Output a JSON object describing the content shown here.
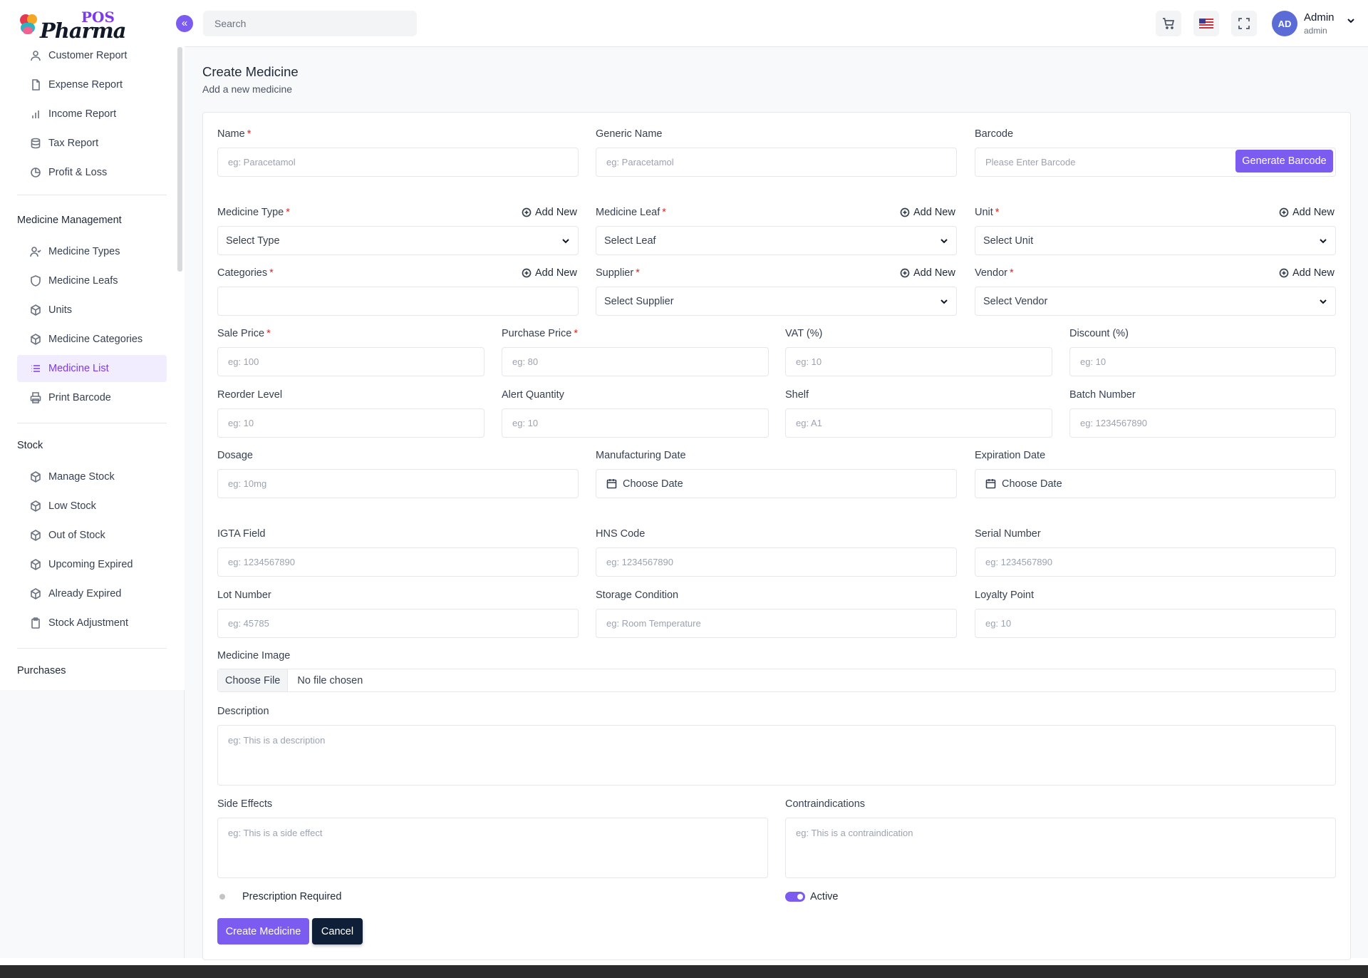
{
  "brand": {
    "pos": "POS",
    "pharma": "Pharma"
  },
  "header": {
    "search_placeholder": "Search",
    "user_name": "Admin",
    "user_role": "admin",
    "avatar_initials": "AD"
  },
  "sidebar": {
    "reports": [
      {
        "label": "Customer Report",
        "icon": "user-icon"
      },
      {
        "label": "Expense Report",
        "icon": "file-icon"
      },
      {
        "label": "Income Report",
        "icon": "bar-chart-icon"
      },
      {
        "label": "Tax Report",
        "icon": "database-icon"
      },
      {
        "label": "Profit & Loss",
        "icon": "pie-chart-icon"
      }
    ],
    "medicine_section": "Medicine Management",
    "medicine": [
      {
        "label": "Medicine Types",
        "icon": "user-check-icon"
      },
      {
        "label": "Medicine Leafs",
        "icon": "shield-icon"
      },
      {
        "label": "Units",
        "icon": "box-icon"
      },
      {
        "label": "Medicine Categories",
        "icon": "box-icon"
      },
      {
        "label": "Medicine List",
        "icon": "list-icon"
      },
      {
        "label": "Print Barcode",
        "icon": "printer-icon"
      }
    ],
    "stock_section": "Stock",
    "stock": [
      {
        "label": "Manage Stock",
        "icon": "box-icon"
      },
      {
        "label": "Low Stock",
        "icon": "box-icon"
      },
      {
        "label": "Out of Stock",
        "icon": "box-icon"
      },
      {
        "label": "Upcoming Expired",
        "icon": "box-icon"
      },
      {
        "label": "Already Expired",
        "icon": "box-icon"
      },
      {
        "label": "Stock Adjustment",
        "icon": "clipboard-icon"
      }
    ],
    "purchases_section": "Purchases"
  },
  "page": {
    "title": "Create Medicine",
    "subtitle": "Add a new medicine"
  },
  "form": {
    "add_new": "Add New",
    "name": {
      "label": "Name",
      "placeholder": "eg: Paracetamol"
    },
    "generic_name": {
      "label": "Generic Name",
      "placeholder": "eg: Paracetamol"
    },
    "barcode": {
      "label": "Barcode",
      "placeholder": "Please Enter Barcode",
      "button": "Generate Barcode"
    },
    "medicine_type": {
      "label": "Medicine Type",
      "value": "Select Type"
    },
    "medicine_leaf": {
      "label": "Medicine Leaf",
      "value": "Select Leaf"
    },
    "unit": {
      "label": "Unit",
      "value": "Select Unit"
    },
    "categories": {
      "label": "Categories"
    },
    "supplier": {
      "label": "Supplier",
      "value": "Select Supplier"
    },
    "vendor": {
      "label": "Vendor",
      "value": "Select Vendor"
    },
    "sale_price": {
      "label": "Sale Price",
      "placeholder": "eg: 100"
    },
    "purchase_price": {
      "label": "Purchase Price",
      "placeholder": "eg: 80"
    },
    "vat": {
      "label": "VAT (%)",
      "placeholder": "eg: 10"
    },
    "discount": {
      "label": "Discount (%)",
      "placeholder": "eg: 10"
    },
    "reorder_level": {
      "label": "Reorder Level",
      "placeholder": "eg: 10"
    },
    "alert_quantity": {
      "label": "Alert Quantity",
      "placeholder": "eg: 10"
    },
    "shelf": {
      "label": "Shelf",
      "placeholder": "eg: A1"
    },
    "batch_number": {
      "label": "Batch Number",
      "placeholder": "eg: 1234567890"
    },
    "dosage": {
      "label": "Dosage",
      "placeholder": "eg: 10mg"
    },
    "manufacturing_date": {
      "label": "Manufacturing Date",
      "value": "Choose Date"
    },
    "expiration_date": {
      "label": "Expiration Date",
      "value": "Choose Date"
    },
    "igta": {
      "label": "IGTA Field",
      "placeholder": "eg: 1234567890"
    },
    "hns": {
      "label": "HNS Code",
      "placeholder": "eg: 1234567890"
    },
    "serial": {
      "label": "Serial Number",
      "placeholder": "eg: 1234567890"
    },
    "lot": {
      "label": "Lot Number",
      "placeholder": "eg: 45785"
    },
    "storage": {
      "label": "Storage Condition",
      "placeholder": "eg: Room Temperature"
    },
    "loyalty": {
      "label": "Loyalty Point",
      "placeholder": "eg: 10"
    },
    "image": {
      "label": "Medicine Image",
      "button": "Choose File",
      "status": "No file chosen"
    },
    "description": {
      "label": "Description",
      "placeholder": "eg: This is a description"
    },
    "side_effects": {
      "label": "Side Effects",
      "placeholder": "eg: This is a side effect"
    },
    "contraindications": {
      "label": "Contraindications",
      "placeholder": "eg: This is a contraindication"
    },
    "prescription_required": {
      "label": "Prescription Required",
      "on": false
    },
    "active": {
      "label": "Active",
      "on": true
    },
    "submit": "Create Medicine",
    "cancel": "Cancel"
  },
  "colors": {
    "accent": "#7c5cf0",
    "dark": "#0f1f38",
    "required": "#dc2626"
  }
}
